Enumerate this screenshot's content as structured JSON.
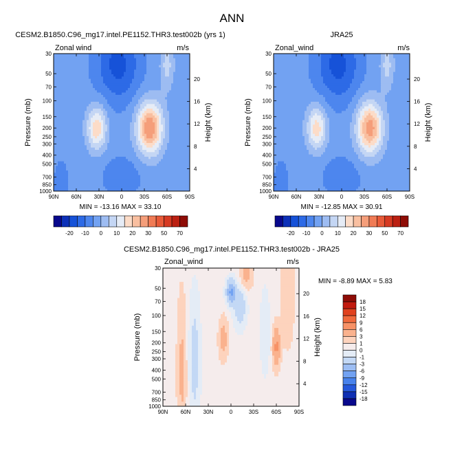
{
  "figure": {
    "title": "ANN",
    "panels": [
      {
        "title": "CESM2.B1850.C96_mg17.intel.PE1152.THR3.test002b (yrs 1)",
        "variable": "Zonal wind",
        "units": "m/s",
        "stats": "MIN = -13.16   MAX =  33.10"
      },
      {
        "title": "JRA25",
        "variable": "Zonal_wind",
        "units": "m/s",
        "stats": "MIN = -12.85   MAX =  30.91"
      },
      {
        "title": "CESM2.B1850.C96_mg17.intel.PE1152.THR3.test002b - JRA25",
        "variable": "Zonal_wind",
        "units": "m/s",
        "stats": "MIN =  -8.89   MAX =   5.83"
      }
    ]
  },
  "chart_data": [
    {
      "type": "heatmap",
      "title": "CESM2.B1850.C96_mg17.intel.PE1152.THR3.test002b (yrs 1)",
      "xlabel": "",
      "ylabel": "Pressure (mb)",
      "y2label": "Height (km)",
      "x_ticks": [
        "90N",
        "60N",
        "30N",
        "0",
        "30S",
        "60S",
        "90S"
      ],
      "y_ticks": [
        "30",
        "50",
        "70",
        "100",
        "150",
        "200",
        "250",
        "300",
        "400",
        "500",
        "700",
        "850",
        "1000"
      ],
      "y2_ticks": [
        "20",
        "16",
        "12",
        "8",
        "4"
      ],
      "xlim": [
        90,
        -90
      ],
      "ylim": [
        1000,
        30
      ],
      "y_scale": "log",
      "min": -13.16,
      "max": 33.1,
      "colorbar": {
        "orientation": "horizontal",
        "levels": [
          -25,
          -20,
          -15,
          -10,
          -5,
          0,
          5,
          10,
          15,
          20,
          25,
          30,
          35,
          40,
          50,
          60,
          70
        ],
        "labels": [
          "-20",
          "-10",
          "0",
          "10",
          "20",
          "30",
          "50",
          "70"
        ],
        "colors": [
          "#08088c",
          "#0c30b8",
          "#1652d8",
          "#2d6ae6",
          "#4d86ee",
          "#72a2f2",
          "#9dbcf2",
          "#c4d6f4",
          "#e6ecf6",
          "#fcdcc8",
          "#f9bfa0",
          "#f59e7a",
          "#f07b55",
          "#e85a38",
          "#d63a22",
          "#bb2012",
          "#8e0c06"
        ]
      }
    },
    {
      "type": "heatmap",
      "title": "JRA25",
      "xlabel": "",
      "ylabel": "Pressure (mb)",
      "y2label": "Height (km)",
      "x_ticks": [
        "90N",
        "60N",
        "30N",
        "0",
        "30S",
        "60S",
        "90S"
      ],
      "y_ticks": [
        "30",
        "50",
        "70",
        "100",
        "150",
        "200",
        "250",
        "300",
        "400",
        "500",
        "700",
        "850",
        "1000"
      ],
      "y2_ticks": [
        "20",
        "16",
        "12",
        "8",
        "4"
      ],
      "xlim": [
        90,
        -90
      ],
      "ylim": [
        1000,
        30
      ],
      "y_scale": "log",
      "min": -12.85,
      "max": 30.91,
      "colorbar": {
        "orientation": "horizontal",
        "levels": [
          -25,
          -20,
          -15,
          -10,
          -5,
          0,
          5,
          10,
          15,
          20,
          25,
          30,
          35,
          40,
          50,
          60,
          70
        ],
        "labels": [
          "-20",
          "-10",
          "0",
          "10",
          "20",
          "30",
          "50",
          "70"
        ],
        "colors": [
          "#08088c",
          "#0c30b8",
          "#1652d8",
          "#2d6ae6",
          "#4d86ee",
          "#72a2f2",
          "#9dbcf2",
          "#c4d6f4",
          "#e6ecf6",
          "#fcdcc8",
          "#f9bfa0",
          "#f59e7a",
          "#f07b55",
          "#e85a38",
          "#d63a22",
          "#bb2012",
          "#8e0c06"
        ]
      }
    },
    {
      "type": "heatmap",
      "title": "CESM2.B1850.C96_mg17.intel.PE1152.THR3.test002b - JRA25",
      "xlabel": "",
      "ylabel": "Pressure (mb)",
      "y2label": "Height (km)",
      "x_ticks": [
        "90N",
        "60N",
        "30N",
        "0",
        "30S",
        "60S",
        "90S"
      ],
      "y_ticks": [
        "30",
        "50",
        "70",
        "100",
        "150",
        "200",
        "250",
        "300",
        "400",
        "500",
        "700",
        "850",
        "1000"
      ],
      "y2_ticks": [
        "20",
        "16",
        "12",
        "8",
        "4"
      ],
      "xlim": [
        90,
        -90
      ],
      "ylim": [
        1000,
        30
      ],
      "y_scale": "log",
      "min": -8.89,
      "max": 5.83,
      "colorbar": {
        "orientation": "vertical",
        "labels": [
          "18",
          "15",
          "12",
          "9",
          "6",
          "3",
          "1",
          "0",
          "-1",
          "-3",
          "-6",
          "-9",
          "-12",
          "-15",
          "-18"
        ],
        "colors": [
          "#8e0c06",
          "#c21a0e",
          "#e0421f",
          "#f06a3d",
          "#f79267",
          "#fab28e",
          "#fdd3bd",
          "#f5ecec",
          "#e4ecf6",
          "#c3d8f5",
          "#9cbdf3",
          "#72a2f2",
          "#4882ec",
          "#2558db",
          "#0e2fb3",
          "#08088c"
        ]
      }
    }
  ]
}
